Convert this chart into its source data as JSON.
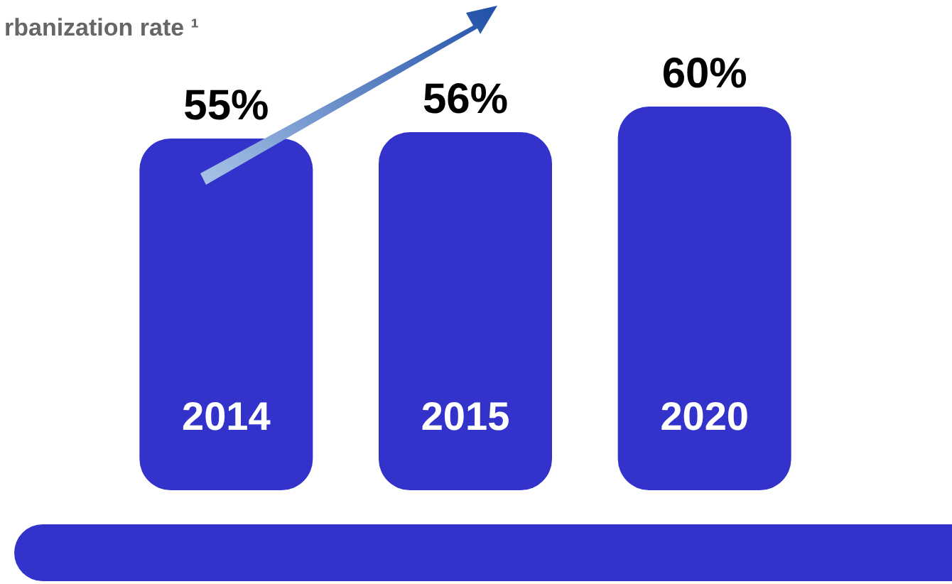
{
  "chart_data": {
    "type": "bar",
    "title": "rbanization rate ¹",
    "categories": [
      "2014",
      "2015",
      "2020"
    ],
    "values": [
      55,
      56,
      60
    ],
    "value_labels": [
      "55%",
      "56%",
      "60%"
    ],
    "color": "#3333cc"
  }
}
